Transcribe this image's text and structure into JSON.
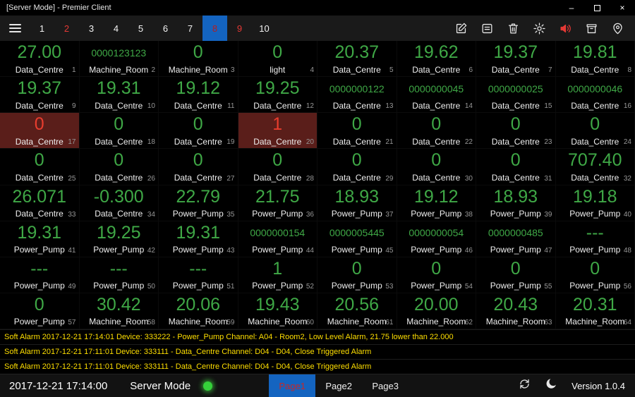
{
  "window": {
    "title": "[Server Mode] - Premier Client"
  },
  "icons": {
    "minimize": "–",
    "close": "×"
  },
  "colors": {
    "value_green": "#3fa846",
    "alarm_red": "#e83d2e",
    "alarm_cell_bg": "#5a1e1a",
    "selected_blue": "#1464c0",
    "alarm_text_yellow": "#ffdf00",
    "status_dot_green": "#35d13a"
  },
  "toolbar": {
    "tabs": [
      {
        "label": "1"
      },
      {
        "label": "2",
        "alarm": true
      },
      {
        "label": "3"
      },
      {
        "label": "4"
      },
      {
        "label": "5"
      },
      {
        "label": "6"
      },
      {
        "label": "7"
      },
      {
        "label": "8",
        "selected": true,
        "alarm": true
      },
      {
        "label": "9",
        "alarm": true
      },
      {
        "label": "10"
      }
    ],
    "icons": [
      "edit",
      "notes",
      "delete",
      "settings",
      "sound",
      "archive",
      "location"
    ]
  },
  "grid": {
    "cells": [
      {
        "value": "27.00",
        "label": "Data_Centre",
        "index": 1
      },
      {
        "value": "0000123123",
        "label": "Machine_Room",
        "index": 2,
        "size": "small"
      },
      {
        "value": "0",
        "label": "Machine_Room",
        "index": 3
      },
      {
        "value": "0",
        "label": "light",
        "index": 4
      },
      {
        "value": "20.37",
        "label": "Data_Centre",
        "index": 5
      },
      {
        "value": "19.62",
        "label": "Data_Centre",
        "index": 6
      },
      {
        "value": "19.37",
        "label": "Data_Centre",
        "index": 7
      },
      {
        "value": "19.81",
        "label": "Data_Centre",
        "index": 8
      },
      {
        "value": "19.37",
        "label": "Data_Centre",
        "index": 9
      },
      {
        "value": "19.31",
        "label": "Data_Centre",
        "index": 10
      },
      {
        "value": "19.12",
        "label": "Data_Centre",
        "index": 11
      },
      {
        "value": "19.25",
        "label": "Data_Centre",
        "index": 12
      },
      {
        "value": "0000000122",
        "label": "Data_Centre",
        "index": 13,
        "size": "small"
      },
      {
        "value": "0000000045",
        "label": "Data_Centre",
        "index": 14,
        "size": "small"
      },
      {
        "value": "0000000025",
        "label": "Data_Centre",
        "index": 15,
        "size": "small"
      },
      {
        "value": "0000000046",
        "label": "Data_Centre",
        "index": 16,
        "size": "small"
      },
      {
        "value": "0",
        "label": "Data_Centre",
        "index": 17,
        "state": "alarm"
      },
      {
        "value": "0",
        "label": "Data_Centre",
        "index": 18
      },
      {
        "value": "0",
        "label": "Data_Centre",
        "index": 19
      },
      {
        "value": "1",
        "label": "Data_Centre",
        "index": 20,
        "state": "alarm"
      },
      {
        "value": "0",
        "label": "Data_Centre",
        "index": 21
      },
      {
        "value": "0",
        "label": "Data_Centre",
        "index": 22
      },
      {
        "value": "0",
        "label": "Data_Centre",
        "index": 23
      },
      {
        "value": "0",
        "label": "Data_Centre",
        "index": 24
      },
      {
        "value": "0",
        "label": "Data_Centre",
        "index": 25
      },
      {
        "value": "0",
        "label": "Data_Centre",
        "index": 26
      },
      {
        "value": "0",
        "label": "Data_Centre",
        "index": 27
      },
      {
        "value": "0",
        "label": "Data_Centre",
        "index": 28
      },
      {
        "value": "0",
        "label": "Data_Centre",
        "index": 29
      },
      {
        "value": "0",
        "label": "Data_Centre",
        "index": 30
      },
      {
        "value": "0",
        "label": "Data_Centre",
        "index": 31
      },
      {
        "value": "707.40",
        "label": "Data_Centre",
        "index": 32
      },
      {
        "value": "26.071",
        "label": "Data_Centre",
        "index": 33
      },
      {
        "value": "-0.300",
        "label": "Data_Centre",
        "index": 34
      },
      {
        "value": "22.79",
        "label": "Power_Pump",
        "index": 35
      },
      {
        "value": "21.75",
        "label": "Power_Pump",
        "index": 36
      },
      {
        "value": "18.93",
        "label": "Power_Pump",
        "index": 37
      },
      {
        "value": "19.12",
        "label": "Power_Pump",
        "index": 38
      },
      {
        "value": "18.93",
        "label": "Power_Pump",
        "index": 39
      },
      {
        "value": "19.18",
        "label": "Power_Pump",
        "index": 40
      },
      {
        "value": "19.31",
        "label": "Power_Pump",
        "index": 41
      },
      {
        "value": "19.25",
        "label": "Power_Pump",
        "index": 42
      },
      {
        "value": "19.31",
        "label": "Power_Pump",
        "index": 43
      },
      {
        "value": "0000000154",
        "label": "Power_Pump",
        "index": 44,
        "size": "small"
      },
      {
        "value": "0000005445",
        "label": "Power_Pump",
        "index": 45,
        "size": "small"
      },
      {
        "value": "0000000054",
        "label": "Power_Pump",
        "index": 46,
        "size": "small"
      },
      {
        "value": "0000000485",
        "label": "Power_Pump",
        "index": 47,
        "size": "small"
      },
      {
        "value": "---",
        "label": "Power_Pump",
        "index": 48
      },
      {
        "value": "---",
        "label": "Power_Pump",
        "index": 49
      },
      {
        "value": "---",
        "label": "Power_Pump",
        "index": 50
      },
      {
        "value": "---",
        "label": "Power_Pump",
        "index": 51
      },
      {
        "value": "1",
        "label": "Power_Pump",
        "index": 52
      },
      {
        "value": "0",
        "label": "Power_Pump",
        "index": 53
      },
      {
        "value": "0",
        "label": "Power_Pump",
        "index": 54
      },
      {
        "value": "0",
        "label": "Power_Pump",
        "index": 55
      },
      {
        "value": "0",
        "label": "Power_Pump",
        "index": 56
      },
      {
        "value": "0",
        "label": "Power_Pump",
        "index": 57
      },
      {
        "value": "30.42",
        "label": "Machine_Room",
        "index": 58
      },
      {
        "value": "20.06",
        "label": "Machine_Room",
        "index": 59
      },
      {
        "value": "19.43",
        "label": "Machine_Room",
        "index": 60
      },
      {
        "value": "20.56",
        "label": "Machine_Room",
        "index": 61
      },
      {
        "value": "20.00",
        "label": "Machine_Room",
        "index": 62
      },
      {
        "value": "20.43",
        "label": "Machine_Room",
        "index": 63
      },
      {
        "value": "20.31",
        "label": "Machine_Room",
        "index": 64
      }
    ]
  },
  "alarms": [
    "Soft Alarm 2017-12-21 17:14:01 Device: 333222 - Power_Pump Channel: A04 - Room2, Low Level Alarm, 21.75 lower than 22.000",
    "Soft Alarm 2017-12-21 17:11:01 Device: 333111 - Data_Centre Channel: D04 - D04, Close Triggered Alarm",
    "Soft Alarm 2017-12-21 17:11:01 Device: 333111 - Data_Centre Channel: D04 - D04, Close Triggered Alarm"
  ],
  "statusbar": {
    "timestamp": "2017-12-21 17:14:00",
    "mode": "Server Mode",
    "pages": [
      {
        "label": "Page1",
        "active": true
      },
      {
        "label": "Page2"
      },
      {
        "label": "Page3"
      }
    ],
    "version": "Version 1.0.4"
  }
}
